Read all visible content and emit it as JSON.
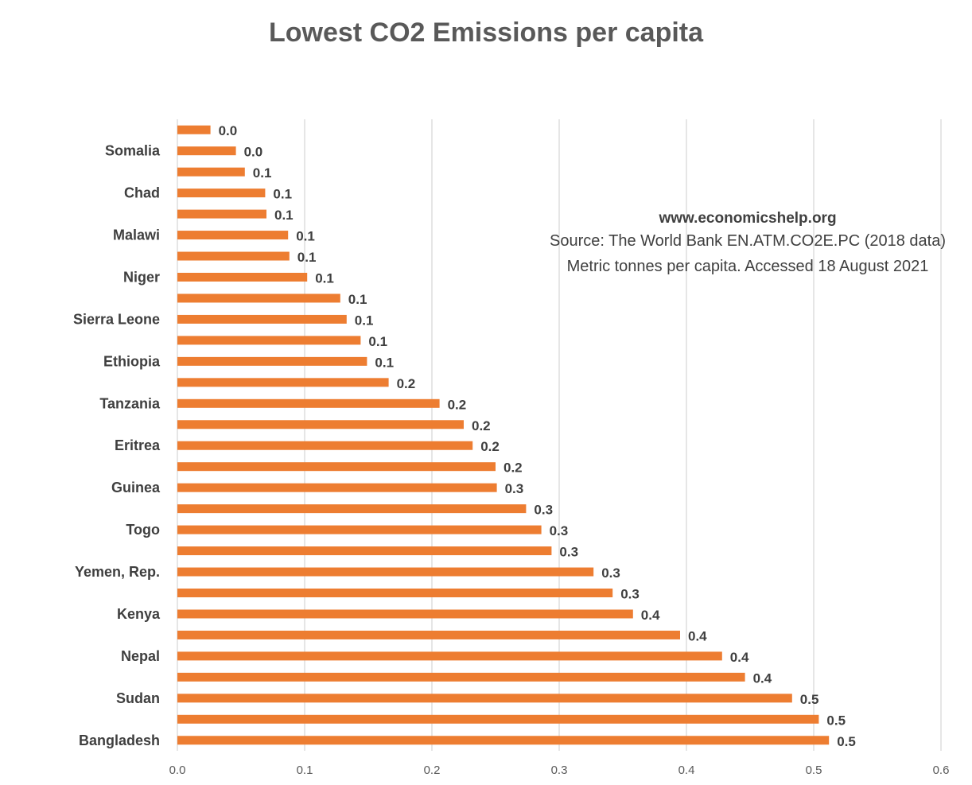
{
  "chart_data": {
    "type": "bar",
    "orientation": "horizontal",
    "title": "Lowest CO2 Emissions per capita",
    "xlabel": "",
    "ylabel": "",
    "xlim": [
      0.0,
      0.6
    ],
    "x_ticks": [
      "0.0",
      "0.1",
      "0.2",
      "0.3",
      "0.4",
      "0.5",
      "0.6"
    ],
    "grid": true,
    "legend": "none",
    "bar_color": "#ed7d31",
    "categories": [
      "",
      "Somalia",
      "",
      "Chad",
      "",
      "Malawi",
      "",
      "Niger",
      "",
      "Sierra Leone",
      "",
      "Ethiopia",
      "",
      "Tanzania",
      "",
      "Eritrea",
      "",
      "Guinea",
      "",
      "Togo",
      "",
      "Yemen, Rep.",
      "",
      "Kenya",
      "",
      "Nepal",
      "",
      "Sudan",
      "",
      "Bangladesh"
    ],
    "values": [
      0.026,
      0.046,
      0.053,
      0.069,
      0.07,
      0.087,
      0.088,
      0.102,
      0.128,
      0.133,
      0.144,
      0.149,
      0.166,
      0.206,
      0.225,
      0.232,
      0.25,
      0.251,
      0.274,
      0.286,
      0.294,
      0.327,
      0.342,
      0.358,
      0.395,
      0.428,
      0.446,
      0.483,
      0.504,
      0.512
    ],
    "data_labels": [
      "0.0",
      "0.0",
      "0.1",
      "0.1",
      "0.1",
      "0.1",
      "0.1",
      "0.1",
      "0.1",
      "0.1",
      "0.1",
      "0.1",
      "0.2",
      "0.2",
      "0.2",
      "0.2",
      "0.2",
      "0.3",
      "0.3",
      "0.3",
      "0.3",
      "0.3",
      "0.3",
      "0.4",
      "0.4",
      "0.4",
      "0.4",
      "0.5",
      "0.5",
      "0.5"
    ],
    "annotations": {
      "url": "www.economicshelp.org",
      "source": "Source: The World Bank EN.ATM.CO2E.PC (2018 data)",
      "units": "Metric tonnes per capita. Accessed 18 August 2021"
    }
  }
}
